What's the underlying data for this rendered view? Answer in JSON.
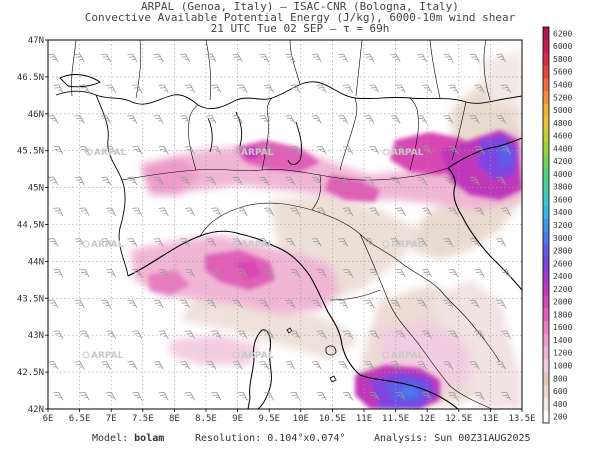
{
  "header": {
    "line1": "ARPAL (Genoa, Italy) — ISAC-CNR (Bologna, Italy)",
    "line2": "Convective Available Potential Energy (J/kg), 6000-10m wind shear",
    "line3": "21 UTC Tue 02 SEP — τ = 69h"
  },
  "map": {
    "lat_labels": [
      "47N",
      "46.5N",
      "46N",
      "45.5N",
      "45N",
      "44.5N",
      "44N",
      "43.5N",
      "43N",
      "42.5N",
      "42N"
    ],
    "lon_labels": [
      "6E",
      "6.5E",
      "7E",
      "7.5E",
      "8E",
      "8.5E",
      "9E",
      "9.5E",
      "10E",
      "10.5E",
      "11E",
      "11.5E",
      "12E",
      "12.5E",
      "13E",
      "13.5E"
    ],
    "watermark": "ARPAL",
    "colors": {
      "land_border": "#000000",
      "grid": "#9a9a9a",
      "watermark": "#c8c8c8"
    }
  },
  "colorbar": {
    "labels": [
      "200",
      "400",
      "600",
      "800",
      "1000",
      "1200",
      "1400",
      "1600",
      "1800",
      "2000",
      "2200",
      "2400",
      "2600",
      "2800",
      "3000",
      "3200",
      "3400",
      "3600",
      "3800",
      "4000",
      "4200",
      "4400",
      "4600",
      "4800",
      "5000",
      "5200",
      "5400",
      "5600",
      "5800",
      "6000",
      "6200"
    ],
    "colors": [
      "#ffffff",
      "#f3e7e0",
      "#ead7cc",
      "#e2c8bb",
      "#f2cde0",
      "#f0b6d5",
      "#ec9ccb",
      "#e77ec0",
      "#e060b7",
      "#d846b4",
      "#c038ba",
      "#a23ad0",
      "#7e44e0",
      "#5c5ce8",
      "#4b78ec",
      "#3e98ea",
      "#36b4e2",
      "#3ec7c8",
      "#44cfa4",
      "#52d17e",
      "#72d45a",
      "#9ad23e",
      "#c2d038",
      "#e2c838",
      "#f0b03a",
      "#f2903e",
      "#f06a3e",
      "#e8443e",
      "#d82a46",
      "#c21e4e",
      "#a8185a"
    ]
  },
  "footer": {
    "model_label": "Model:",
    "model_value": "bolam",
    "resolution": "Resolution: 0.104°x0.074°",
    "analysis": "Analysis: Sun 00Z31AUG2025"
  }
}
